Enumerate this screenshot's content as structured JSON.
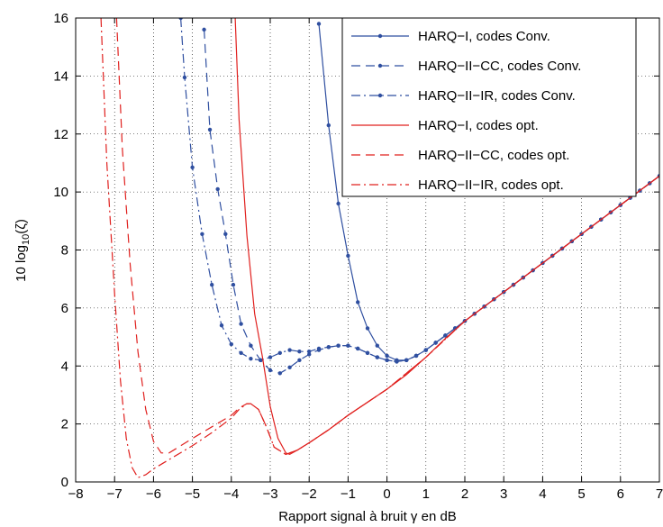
{
  "chart_data": {
    "type": "line",
    "title": "",
    "xlabel": "Rapport signal à bruit γ en dB",
    "ylabel_parts": {
      "prefix": "10 log",
      "sub": "10",
      "suffix": "(ζ)"
    },
    "xlim": [
      -8,
      7
    ],
    "ylim": [
      0,
      16
    ],
    "xticks": [
      -8,
      -7,
      -6,
      -5,
      -4,
      -3,
      -2,
      -1,
      0,
      1,
      2,
      3,
      4,
      5,
      6,
      7
    ],
    "yticks": [
      0,
      2,
      4,
      6,
      8,
      10,
      12,
      14,
      16
    ],
    "xtick_labels": [
      "−8",
      "−7",
      "−6",
      "−5",
      "−4",
      "−3",
      "−2",
      "−1",
      "0",
      "1",
      "2",
      "3",
      "4",
      "5",
      "6",
      "7"
    ],
    "ytick_labels": [
      "0",
      "2",
      "4",
      "6",
      "8",
      "10",
      "12",
      "14",
      "16"
    ],
    "grid": "dotted",
    "legend_position": "top-right",
    "series": [
      {
        "name": "HARQ−I, codes Conv.",
        "color": "#2f4fa0",
        "dash": "solid",
        "markers": true,
        "points": [
          [
            -1.75,
            15.8
          ],
          [
            -1.5,
            12.3
          ],
          [
            -1.25,
            9.6
          ],
          [
            -1.0,
            7.8
          ],
          [
            -0.75,
            6.2
          ],
          [
            -0.5,
            5.3
          ],
          [
            -0.25,
            4.7
          ],
          [
            0.0,
            4.35
          ],
          [
            0.25,
            4.2
          ],
          [
            0.5,
            4.2
          ],
          [
            0.75,
            4.35
          ],
          [
            1.0,
            4.55
          ],
          [
            1.25,
            4.8
          ],
          [
            1.5,
            5.05
          ],
          [
            1.75,
            5.3
          ],
          [
            2.0,
            5.55
          ],
          [
            2.25,
            5.8
          ],
          [
            2.5,
            6.05
          ],
          [
            2.75,
            6.3
          ],
          [
            3.0,
            6.55
          ],
          [
            3.25,
            6.8
          ],
          [
            3.5,
            7.05
          ],
          [
            3.75,
            7.3
          ],
          [
            4.0,
            7.55
          ],
          [
            4.25,
            7.8
          ],
          [
            4.5,
            8.05
          ],
          [
            4.75,
            8.3
          ],
          [
            5.0,
            8.55
          ],
          [
            5.25,
            8.8
          ],
          [
            5.5,
            9.05
          ],
          [
            5.75,
            9.3
          ],
          [
            6.0,
            9.55
          ],
          [
            6.25,
            9.8
          ],
          [
            6.5,
            10.05
          ],
          [
            6.75,
            10.3
          ],
          [
            7.0,
            10.55
          ]
        ]
      },
      {
        "name": "HARQ−II−CC, codes Conv.",
        "color": "#2f4fa0",
        "dash": "dashed",
        "markers": true,
        "points": [
          [
            -4.7,
            15.6
          ],
          [
            -4.55,
            12.15
          ],
          [
            -4.35,
            10.1
          ],
          [
            -4.15,
            8.55
          ],
          [
            -3.95,
            6.8
          ],
          [
            -3.75,
            5.45
          ],
          [
            -3.5,
            4.7
          ],
          [
            -3.25,
            4.2
          ],
          [
            -3.0,
            3.85
          ],
          [
            -2.75,
            3.75
          ],
          [
            -2.5,
            3.95
          ],
          [
            -2.25,
            4.2
          ],
          [
            -2.0,
            4.4
          ],
          [
            -1.75,
            4.55
          ],
          [
            -1.5,
            4.65
          ],
          [
            -1.25,
            4.7
          ],
          [
            -1.0,
            4.7
          ],
          [
            -0.75,
            4.6
          ],
          [
            -0.5,
            4.45
          ],
          [
            -0.25,
            4.3
          ],
          [
            0.0,
            4.2
          ],
          [
            0.25,
            4.15
          ],
          [
            0.5,
            4.2
          ],
          [
            0.75,
            4.35
          ],
          [
            1.0,
            4.55
          ],
          [
            1.25,
            4.8
          ],
          [
            1.5,
            5.05
          ],
          [
            1.75,
            5.3
          ],
          [
            2.0,
            5.55
          ],
          [
            2.25,
            5.8
          ],
          [
            2.5,
            6.05
          ],
          [
            2.75,
            6.3
          ],
          [
            3.0,
            6.55
          ],
          [
            3.25,
            6.8
          ],
          [
            3.5,
            7.05
          ],
          [
            3.75,
            7.3
          ],
          [
            4.0,
            7.55
          ],
          [
            4.25,
            7.8
          ],
          [
            4.5,
            8.05
          ],
          [
            4.75,
            8.3
          ],
          [
            5.0,
            8.55
          ],
          [
            5.25,
            8.8
          ],
          [
            5.5,
            9.05
          ],
          [
            5.75,
            9.3
          ],
          [
            6.0,
            9.55
          ],
          [
            6.25,
            9.8
          ],
          [
            6.5,
            10.05
          ],
          [
            6.75,
            10.3
          ],
          [
            7.0,
            10.55
          ]
        ]
      },
      {
        "name": "HARQ−II−IR, codes Conv.",
        "color": "#2f4fa0",
        "dash": "dashdot",
        "markers": true,
        "points": [
          [
            -5.3,
            16.0
          ],
          [
            -5.2,
            13.95
          ],
          [
            -5.0,
            10.85
          ],
          [
            -4.75,
            8.55
          ],
          [
            -4.5,
            6.8
          ],
          [
            -4.25,
            5.4
          ],
          [
            -4.0,
            4.75
          ],
          [
            -3.75,
            4.45
          ],
          [
            -3.5,
            4.25
          ],
          [
            -3.25,
            4.2
          ],
          [
            -3.0,
            4.3
          ],
          [
            -2.75,
            4.45
          ],
          [
            -2.5,
            4.55
          ],
          [
            -2.25,
            4.5
          ],
          [
            -2.0,
            4.5
          ],
          [
            -1.75,
            4.6
          ],
          [
            -1.5,
            4.65
          ],
          [
            -1.25,
            4.7
          ],
          [
            -1.0,
            4.7
          ],
          [
            -0.75,
            4.6
          ],
          [
            -0.5,
            4.45
          ],
          [
            -0.25,
            4.3
          ],
          [
            0.0,
            4.2
          ],
          [
            0.25,
            4.15
          ],
          [
            0.5,
            4.2
          ],
          [
            0.75,
            4.35
          ],
          [
            1.0,
            4.55
          ],
          [
            1.25,
            4.8
          ],
          [
            1.5,
            5.05
          ],
          [
            1.75,
            5.3
          ],
          [
            2.0,
            5.55
          ],
          [
            2.25,
            5.8
          ],
          [
            2.5,
            6.05
          ],
          [
            2.75,
            6.3
          ],
          [
            3.0,
            6.55
          ],
          [
            3.25,
            6.8
          ],
          [
            3.5,
            7.05
          ],
          [
            3.75,
            7.3
          ],
          [
            4.0,
            7.55
          ],
          [
            4.25,
            7.8
          ],
          [
            4.5,
            8.05
          ],
          [
            4.75,
            8.3
          ],
          [
            5.0,
            8.55
          ],
          [
            5.25,
            8.8
          ],
          [
            5.5,
            9.05
          ],
          [
            5.75,
            9.3
          ],
          [
            6.0,
            9.55
          ],
          [
            6.25,
            9.8
          ],
          [
            6.5,
            10.05
          ],
          [
            6.75,
            10.3
          ],
          [
            7.0,
            10.55
          ]
        ]
      },
      {
        "name": "HARQ−I, codes opt.",
        "color": "#e0201e",
        "dash": "solid",
        "markers": false,
        "points": [
          [
            -3.9,
            16.0
          ],
          [
            -3.8,
            12.5
          ],
          [
            -3.6,
            8.5
          ],
          [
            -3.4,
            5.8
          ],
          [
            -3.2,
            4.3
          ],
          [
            -3.0,
            2.6
          ],
          [
            -2.8,
            1.5
          ],
          [
            -2.6,
            1.0
          ],
          [
            -2.5,
            0.95
          ],
          [
            -2.3,
            1.1
          ],
          [
            -2.0,
            1.35
          ],
          [
            -1.5,
            1.8
          ],
          [
            -1.0,
            2.3
          ],
          [
            -0.5,
            2.75
          ],
          [
            0.0,
            3.2
          ],
          [
            0.5,
            3.7
          ],
          [
            1.0,
            4.3
          ],
          [
            1.5,
            4.95
          ],
          [
            2.0,
            5.55
          ],
          [
            3.0,
            6.55
          ],
          [
            4.0,
            7.55
          ],
          [
            5.0,
            8.55
          ],
          [
            6.0,
            9.55
          ],
          [
            7.0,
            10.55
          ]
        ]
      },
      {
        "name": "HARQ−II−CC, codes opt.",
        "color": "#e0201e",
        "dash": "dashed",
        "markers": false,
        "points": [
          [
            -6.95,
            16.0
          ],
          [
            -6.8,
            11.5
          ],
          [
            -6.6,
            7.5
          ],
          [
            -6.4,
            4.5
          ],
          [
            -6.2,
            2.5
          ],
          [
            -6.0,
            1.4
          ],
          [
            -5.8,
            1.0
          ],
          [
            -5.6,
            1.0
          ],
          [
            -5.3,
            1.25
          ],
          [
            -5.0,
            1.5
          ],
          [
            -4.5,
            1.9
          ],
          [
            -4.0,
            2.3
          ],
          [
            -3.8,
            2.55
          ],
          [
            -3.6,
            2.7
          ],
          [
            -3.5,
            2.7
          ],
          [
            -3.3,
            2.5
          ],
          [
            -3.1,
            1.9
          ],
          [
            -2.9,
            1.2
          ],
          [
            -2.6,
            0.95
          ],
          [
            -2.3,
            1.1
          ],
          [
            -2.0,
            1.35
          ],
          [
            -1.5,
            1.8
          ],
          [
            -1.0,
            2.3
          ],
          [
            0.0,
            3.2
          ],
          [
            1.0,
            4.3
          ],
          [
            2.0,
            5.55
          ],
          [
            3.0,
            6.55
          ],
          [
            4.0,
            7.55
          ],
          [
            5.0,
            8.55
          ],
          [
            6.0,
            9.55
          ],
          [
            7.0,
            10.55
          ]
        ]
      },
      {
        "name": "HARQ−II−IR, codes opt.",
        "color": "#e0201e",
        "dash": "dashdot",
        "markers": false,
        "points": [
          [
            -7.35,
            16.0
          ],
          [
            -7.2,
            11.0
          ],
          [
            -7.0,
            6.5
          ],
          [
            -6.85,
            3.5
          ],
          [
            -6.7,
            1.5
          ],
          [
            -6.55,
            0.5
          ],
          [
            -6.4,
            0.15
          ],
          [
            -6.2,
            0.25
          ],
          [
            -6.0,
            0.45
          ],
          [
            -5.5,
            0.85
          ],
          [
            -5.0,
            1.25
          ],
          [
            -4.5,
            1.7
          ],
          [
            -4.0,
            2.2
          ],
          [
            -3.8,
            2.5
          ],
          [
            -3.6,
            2.7
          ],
          [
            -3.5,
            2.7
          ],
          [
            -3.3,
            2.5
          ],
          [
            -3.1,
            1.9
          ],
          [
            -2.9,
            1.2
          ],
          [
            -2.6,
            0.95
          ],
          [
            -2.3,
            1.1
          ],
          [
            -2.0,
            1.35
          ],
          [
            -1.5,
            1.8
          ],
          [
            -1.0,
            2.3
          ],
          [
            0.0,
            3.2
          ],
          [
            1.0,
            4.3
          ],
          [
            2.0,
            5.55
          ],
          [
            3.0,
            6.55
          ],
          [
            4.0,
            7.55
          ],
          [
            5.0,
            8.55
          ],
          [
            6.0,
            9.55
          ],
          [
            7.0,
            10.55
          ]
        ]
      }
    ]
  }
}
